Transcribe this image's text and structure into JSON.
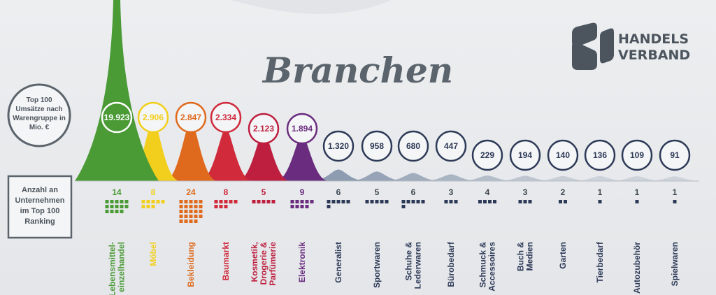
{
  "title": "Branchen",
  "logo": {
    "line1": "HANDELS",
    "line2": "VERBAND"
  },
  "labels": {
    "revenue_line1": "Top 100",
    "revenue_line2": "Umsätze nach",
    "revenue_line3": "Warengruppe in",
    "revenue_line4": "Mio. €",
    "count_line1": "Anzahl an",
    "count_line2": "Unternehmen",
    "count_line3": "im Top 100",
    "count_line4": "Ranking"
  },
  "colors": {
    "background": "#e9eaec",
    "slate": "#3d4852",
    "navy": "#2d3a57",
    "green": "#4a9a36",
    "yellow": "#f2cf1d",
    "orange": "#df6a1d",
    "red": "#d02a3b",
    "crimson": "#be1f3f",
    "purple": "#6a2c7e"
  },
  "chart_data": {
    "type": "bar",
    "categories": [
      [
        "Lebensmittel-",
        "einzelhandel"
      ],
      [
        "Möbel"
      ],
      [
        "Bekleidung"
      ],
      [
        "Baumarkt"
      ],
      [
        "Kosmetik,",
        "Drogerie &",
        "Parfümerie"
      ],
      [
        "Elektronik"
      ],
      [
        "Generalist"
      ],
      [
        "Sportwaren"
      ],
      [
        "Schuhe &",
        "Lederwaren"
      ],
      [
        "Bürobedarf"
      ],
      [
        "Schmuck &",
        "Accessoires"
      ],
      [
        "Buch &",
        "Medien"
      ],
      [
        "Garten"
      ],
      [
        "Tierbedarf"
      ],
      [
        "Autozubehör"
      ],
      [
        "Spielwaren"
      ]
    ],
    "series": [
      {
        "name": "Top 100 Umsätze nach Warengruppe in Mio. €",
        "values": [
          19923,
          2906,
          2847,
          2334,
          2123,
          1894,
          1320,
          958,
          680,
          447,
          229,
          194,
          140,
          136,
          109,
          91
        ],
        "labels": [
          "19.923",
          "2.906",
          "2.847",
          "2.334",
          "2.123",
          "1.894",
          "1.320",
          "958",
          "680",
          "447",
          "229",
          "194",
          "140",
          "136",
          "109",
          "91"
        ]
      },
      {
        "name": "Anzahl an Unternehmen im Top 100 Ranking",
        "values": [
          14,
          8,
          24,
          8,
          5,
          9,
          6,
          5,
          6,
          3,
          4,
          3,
          2,
          1,
          1,
          1
        ],
        "labels": [
          "14",
          "8",
          "24",
          "8",
          "5",
          "9",
          "6",
          "5",
          "6",
          "3",
          "4",
          "3",
          "2",
          "1",
          "1",
          "1"
        ]
      }
    ],
    "colors": [
      "#4a9a36",
      "#f2cf1d",
      "#df6a1d",
      "#d02a3b",
      "#be1f3f",
      "#6a2c7e",
      "#2d3a57",
      "#2d3a57",
      "#2d3a57",
      "#2d3a57",
      "#2d3a57",
      "#2d3a57",
      "#2d3a57",
      "#2d3a57",
      "#2d3a57",
      "#2d3a57"
    ]
  }
}
